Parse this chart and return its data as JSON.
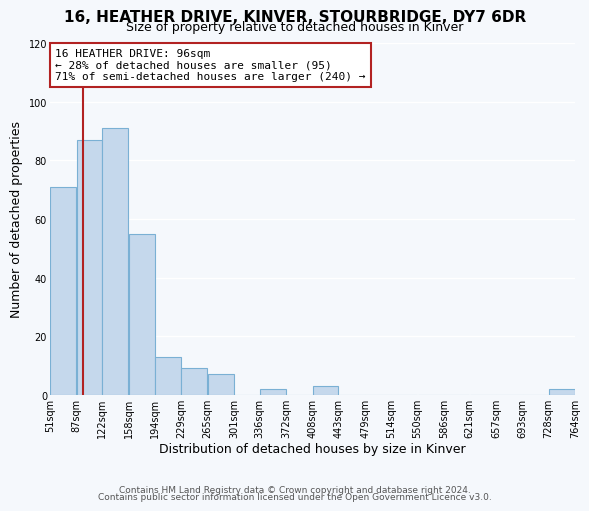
{
  "title": "16, HEATHER DRIVE, KINVER, STOURBRIDGE, DY7 6DR",
  "subtitle": "Size of property relative to detached houses in Kinver",
  "xlabel": "Distribution of detached houses by size in Kinver",
  "ylabel": "Number of detached properties",
  "bar_color": "#c5d8ec",
  "bar_edge_color": "#7ab0d4",
  "bar_left_edges": [
    51,
    87,
    122,
    158,
    194,
    229,
    265,
    301,
    336,
    372,
    408,
    443,
    479,
    514,
    550,
    586,
    621,
    657,
    693,
    728
  ],
  "bar_heights": [
    71,
    87,
    91,
    55,
    13,
    9,
    7,
    0,
    2,
    0,
    3,
    0,
    0,
    0,
    0,
    0,
    0,
    0,
    0,
    2
  ],
  "bin_widths": [
    36,
    35,
    36,
    36,
    35,
    36,
    36,
    35,
    36,
    36,
    35,
    36,
    35,
    36,
    36,
    35,
    36,
    36,
    35,
    36
  ],
  "tick_labels": [
    "51sqm",
    "87sqm",
    "122sqm",
    "158sqm",
    "194sqm",
    "229sqm",
    "265sqm",
    "301sqm",
    "336sqm",
    "372sqm",
    "408sqm",
    "443sqm",
    "479sqm",
    "514sqm",
    "550sqm",
    "586sqm",
    "621sqm",
    "657sqm",
    "693sqm",
    "728sqm",
    "764sqm"
  ],
  "tick_positions": [
    51,
    87,
    122,
    158,
    194,
    229,
    265,
    301,
    336,
    372,
    408,
    443,
    479,
    514,
    550,
    586,
    621,
    657,
    693,
    728,
    764
  ],
  "ylim": [
    0,
    120
  ],
  "xlim": [
    51,
    764
  ],
  "yticks": [
    0,
    20,
    40,
    60,
    80,
    100,
    120
  ],
  "property_size": 96,
  "vline_color": "#b22222",
  "annotation_title": "16 HEATHER DRIVE: 96sqm",
  "annotation_line1": "← 28% of detached houses are smaller (95)",
  "annotation_line2": "71% of semi-detached houses are larger (240) →",
  "annotation_box_facecolor": "#ffffff",
  "annotation_box_edgecolor": "#b22222",
  "footer1": "Contains HM Land Registry data © Crown copyright and database right 2024.",
  "footer2": "Contains public sector information licensed under the Open Government Licence v3.0.",
  "background_color": "#f5f8fc",
  "plot_bg_color": "#f5f8fc",
  "grid_color": "#ffffff",
  "title_fontsize": 11,
  "subtitle_fontsize": 9,
  "axis_label_fontsize": 9,
  "tick_fontsize": 7,
  "annotation_fontsize": 8,
  "footer_fontsize": 6.5
}
